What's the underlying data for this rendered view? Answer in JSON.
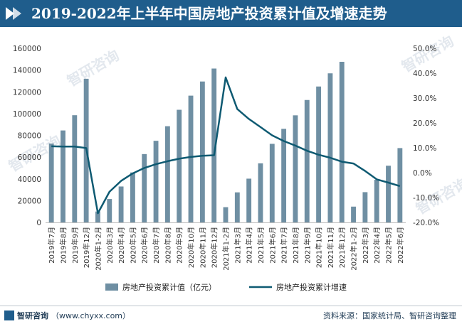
{
  "title": "2019-2022年上半年中国房地产投资累计值及增速走势",
  "footer": {
    "brand": "智研咨询",
    "url": "（www.chyxx.com）",
    "source": "资料来源：国家统计局、智研咨询整理"
  },
  "watermark": "智研咨询",
  "colors": {
    "header": "#1f5d8c",
    "bar": "#6f8fa3",
    "line": "#0e5a72"
  },
  "chart_data": {
    "type": "bar",
    "categories": [
      "2019年7月",
      "2019年8月",
      "2019年9月",
      "2019年12月",
      "2020年1-2月",
      "2020年3月",
      "2020年4月",
      "2020年5月",
      "2020年6月",
      "2020年7月",
      "2020年8月",
      "2020年9月",
      "2020年10月",
      "2020年11月",
      "2020年12月",
      "2021年1-2月",
      "2021年3月",
      "2021年4月",
      "2021年5月",
      "2021年6月",
      "2021年7月",
      "2021年8月",
      "2021年9月",
      "2021年10月",
      "2021年11月",
      "2021年12月",
      "2022年1-2月",
      "2022年3月",
      "2022年4月",
      "2022年5月",
      "2022年6月"
    ],
    "series": [
      {
        "name": "房地产投资累计值（亿元）",
        "kind": "bar",
        "axis": "left",
        "values": [
          72500,
          84500,
          98500,
          132000,
          10000,
          21500,
          33000,
          45900,
          62800,
          75000,
          88400,
          103500,
          116500,
          129500,
          141400,
          14000,
          27600,
          40200,
          54300,
          72200,
          86000,
          98400,
          112500,
          124900,
          137000,
          147600,
          14500,
          27800,
          39200,
          52100,
          68300
        ]
      },
      {
        "name": "房地产投资累计增速",
        "kind": "line",
        "axis": "right",
        "values": [
          10.6,
          10.5,
          10.5,
          9.9,
          -16.3,
          -7.7,
          -3.3,
          -0.3,
          1.9,
          3.4,
          4.6,
          5.6,
          6.3,
          6.8,
          7.0,
          38.3,
          25.6,
          21.6,
          18.3,
          15.0,
          12.7,
          10.9,
          8.8,
          7.2,
          6.0,
          4.4,
          3.7,
          0.7,
          -2.7,
          -4.0,
          -5.4
        ]
      }
    ],
    "y_left": {
      "min": 0,
      "max": 160000,
      "ticks": [
        "0",
        "20000",
        "40000",
        "60000",
        "80000",
        "100000",
        "120000",
        "140000",
        "160000"
      ]
    },
    "y_right": {
      "min": -20,
      "max": 50,
      "ticks": [
        "-20.0%",
        "-10.0%",
        "0.0%",
        "10.0%",
        "20.0%",
        "30.0%",
        "40.0%",
        "50.0%"
      ]
    },
    "legend": {
      "position": "bottom"
    }
  }
}
